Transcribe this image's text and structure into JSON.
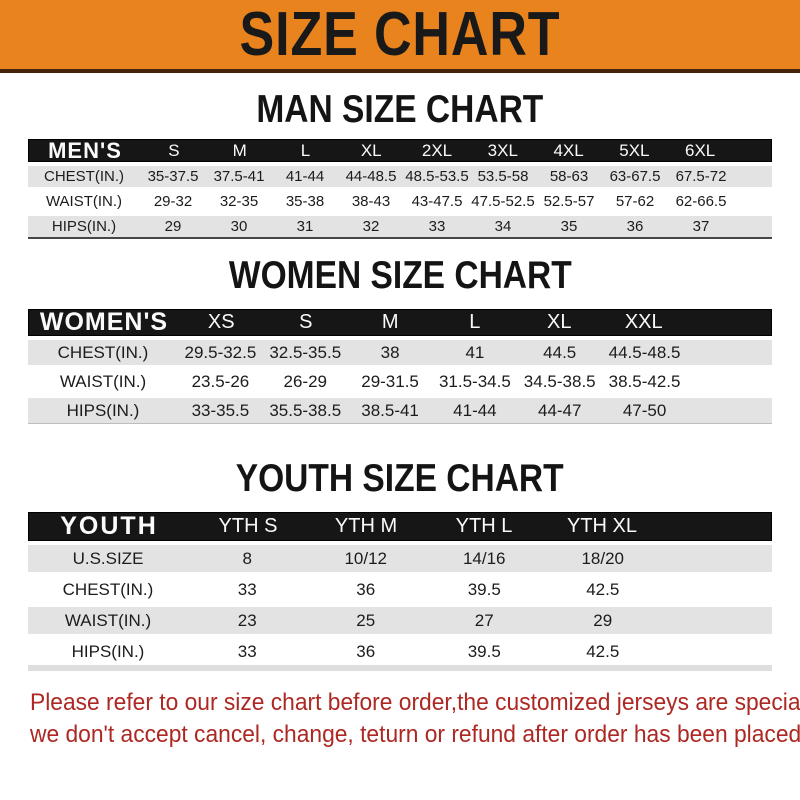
{
  "banner": {
    "title": "SIZE CHART"
  },
  "sections": [
    {
      "heading": "MAN SIZE CHART",
      "header_label": "MEN'S",
      "columns": [
        "S",
        "M",
        "L",
        "XL",
        "2XL",
        "3XL",
        "4XL",
        "5XL",
        "6XL"
      ],
      "rows": [
        {
          "label": "CHEST(IN.)",
          "values": [
            "35-37.5",
            "37.5-41",
            "41-44",
            "44-48.5",
            "48.5-53.5",
            "53.5-58",
            "58-63",
            "63-67.5",
            "67.5-72"
          ]
        },
        {
          "label": "WAIST(IN.)",
          "values": [
            "29-32",
            "32-35",
            "35-38",
            "38-43",
            "43-47.5",
            "47.5-52.5",
            "52.5-57",
            "57-62",
            "62-66.5"
          ]
        },
        {
          "label": "HIPS(IN.)",
          "values": [
            "29",
            "30",
            "31",
            "32",
            "33",
            "34",
            "35",
            "36",
            "37"
          ]
        }
      ]
    },
    {
      "heading": "WOMEN SIZE CHART",
      "header_label": "WOMEN'S",
      "columns": [
        "XS",
        "S",
        "M",
        "L",
        "XL",
        "XXL"
      ],
      "rows": [
        {
          "label": "CHEST(IN.)",
          "values": [
            "29.5-32.5",
            "32.5-35.5",
            "38",
            "41",
            "44.5",
            "44.5-48.5"
          ]
        },
        {
          "label": "WAIST(IN.)",
          "values": [
            "23.5-26",
            "26-29",
            "29-31.5",
            "31.5-34.5",
            "34.5-38.5",
            "38.5-42.5"
          ]
        },
        {
          "label": "HIPS(IN.)",
          "values": [
            "33-35.5",
            "35.5-38.5",
            "38.5-41",
            "41-44",
            "44-47",
            "47-50"
          ]
        }
      ]
    },
    {
      "heading": "YOUTH SIZE CHART",
      "header_label": "YOUTH",
      "columns": [
        "YTH S",
        "YTH M",
        "YTH L",
        "YTH XL"
      ],
      "rows": [
        {
          "label": "U.S.SIZE",
          "values": [
            "8",
            "10/12",
            "14/16",
            "18/20"
          ]
        },
        {
          "label": "CHEST(IN.)",
          "values": [
            "33",
            "36",
            "39.5",
            "42.5"
          ]
        },
        {
          "label": "WAIST(IN.)",
          "values": [
            "23",
            "25",
            "27",
            "29"
          ]
        },
        {
          "label": "HIPS(IN.)",
          "values": [
            "33",
            "36",
            "39.5",
            "42.5"
          ]
        }
      ]
    }
  ],
  "footer": {
    "line1": "Please refer to our size chart before order,the customized jerseys are special products,",
    "line2": "we don't accept cancel, change, teturn or refund after order has been placed!"
  },
  "colors": {
    "banner_orange": "#E8831E",
    "header_black": "#161616",
    "row_gray": "#E3E3E3",
    "note_red": "#AE2823"
  }
}
